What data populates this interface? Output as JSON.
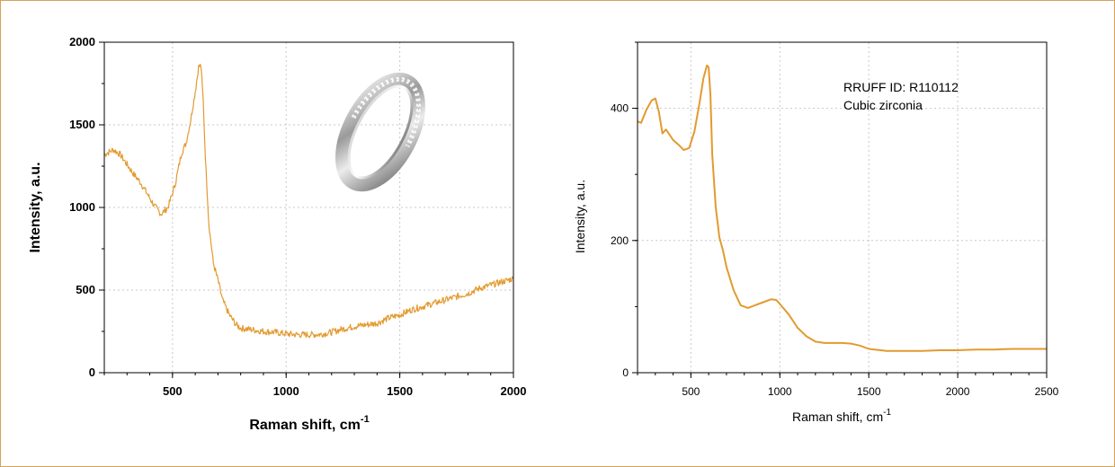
{
  "chart_data": [
    {
      "type": "line",
      "xlabel": "Raman shift, cm",
      "xlabel_superscript": "-1",
      "ylabel": "Intensity, a.u.",
      "xlim": [
        200,
        2000
      ],
      "ylim": [
        0,
        2000
      ],
      "xticks": [
        500,
        1000,
        1500,
        2000
      ],
      "yticks": [
        0,
        500,
        1000,
        1500,
        2000
      ],
      "grid": true,
      "color": "#e39a2f",
      "inset_image": "ring-image",
      "series": [
        {
          "x": [
            200,
            240,
            270,
            300,
            330,
            360,
            390,
            420,
            450,
            480,
            510,
            540,
            560,
            580,
            600,
            615,
            625,
            635,
            645,
            660,
            680,
            700,
            720,
            750,
            780,
            800,
            850,
            900,
            950,
            1000,
            1050,
            1100,
            1150,
            1200,
            1250,
            1300,
            1350,
            1400,
            1450,
            1500,
            1550,
            1600,
            1650,
            1700,
            1750,
            1800,
            1850,
            1900,
            1950,
            2000
          ],
          "y": [
            1320,
            1350,
            1320,
            1260,
            1200,
            1150,
            1080,
            1010,
            960,
            1000,
            1130,
            1330,
            1390,
            1530,
            1700,
            1850,
            1860,
            1650,
            1300,
            900,
            660,
            560,
            440,
            350,
            290,
            270,
            260,
            250,
            245,
            235,
            230,
            230,
            232,
            245,
            265,
            280,
            290,
            300,
            330,
            350,
            380,
            400,
            420,
            440,
            460,
            480,
            510,
            530,
            550,
            570
          ]
        }
      ]
    },
    {
      "type": "line",
      "xlabel": "Raman shift, cm",
      "xlabel_superscript": "-1",
      "ylabel": "Intensity, a.u.",
      "xlim": [
        200,
        2500
      ],
      "ylim": [
        0,
        500
      ],
      "xticks": [
        500,
        1000,
        1500,
        2000,
        2500
      ],
      "yticks": [
        0,
        200,
        400
      ],
      "grid": true,
      "color": "#e39a2f",
      "annotations": [
        "RRUFF ID: R110112",
        "Cubic zirconia"
      ],
      "series": [
        {
          "x": [
            200,
            220,
            250,
            280,
            300,
            320,
            340,
            360,
            380,
            400,
            430,
            460,
            490,
            520,
            550,
            570,
            590,
            600,
            610,
            620,
            640,
            660,
            680,
            700,
            740,
            780,
            820,
            860,
            900,
            950,
            980,
            1000,
            1050,
            1100,
            1150,
            1200,
            1250,
            1300,
            1350,
            1400,
            1450,
            1500,
            1600,
            1700,
            1800,
            1900,
            2000,
            2100,
            2200,
            2300,
            2400,
            2500
          ],
          "y": [
            380,
            378,
            398,
            412,
            415,
            395,
            362,
            368,
            360,
            352,
            345,
            337,
            340,
            365,
            410,
            445,
            465,
            462,
            420,
            330,
            250,
            205,
            185,
            160,
            125,
            102,
            98,
            102,
            106,
            111,
            110,
            104,
            88,
            68,
            55,
            47,
            45,
            45,
            45,
            44,
            41,
            36,
            33,
            33,
            33,
            34,
            34,
            35,
            35,
            36,
            36,
            36
          ]
        }
      ]
    }
  ]
}
